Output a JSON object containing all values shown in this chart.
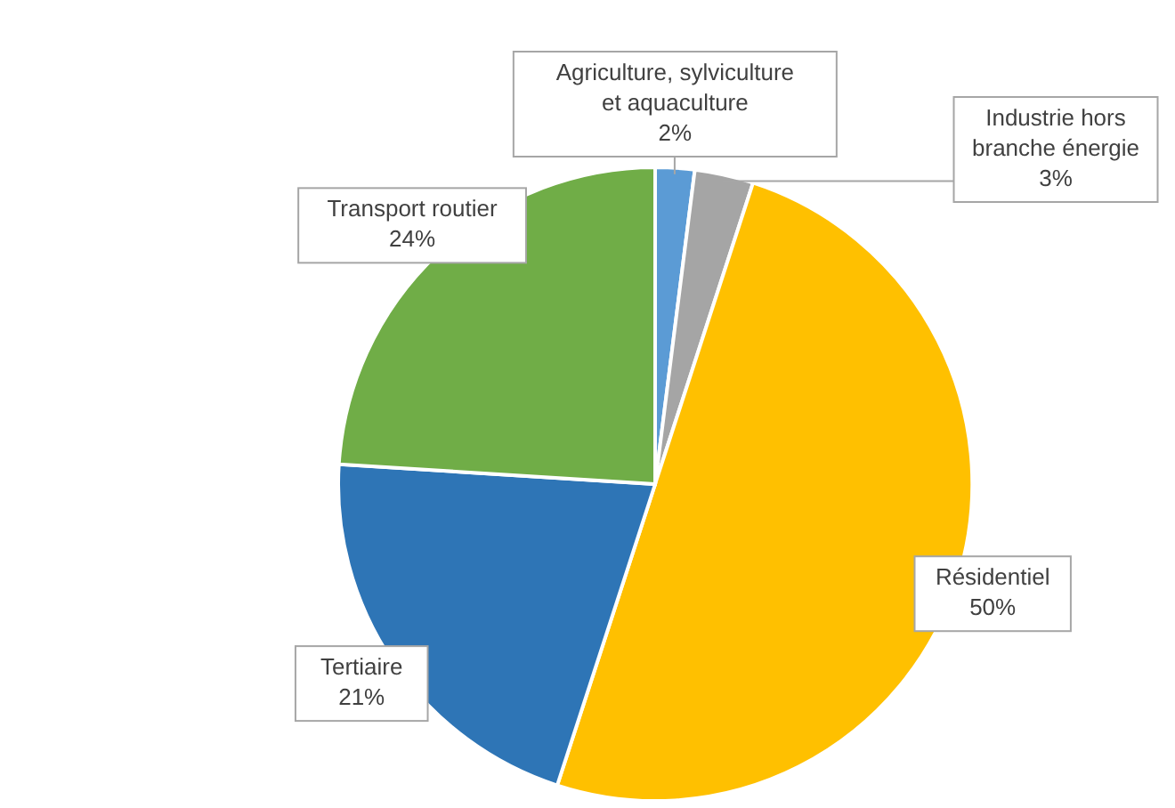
{
  "chart_data": {
    "type": "pie",
    "categories": [
      "Agriculture, sylviculture et aquaculture",
      "Industrie hors branche énergie",
      "Résidentiel",
      "Tertiaire",
      "Transport routier"
    ],
    "values": [
      2,
      3,
      50,
      21,
      24
    ],
    "colors": [
      "#5b9bd5",
      "#a5a5a5",
      "#ffc000",
      "#2e75b6",
      "#70ad47"
    ],
    "value_labels": [
      "2%",
      "3%",
      "50%",
      "21%",
      "24%"
    ]
  }
}
